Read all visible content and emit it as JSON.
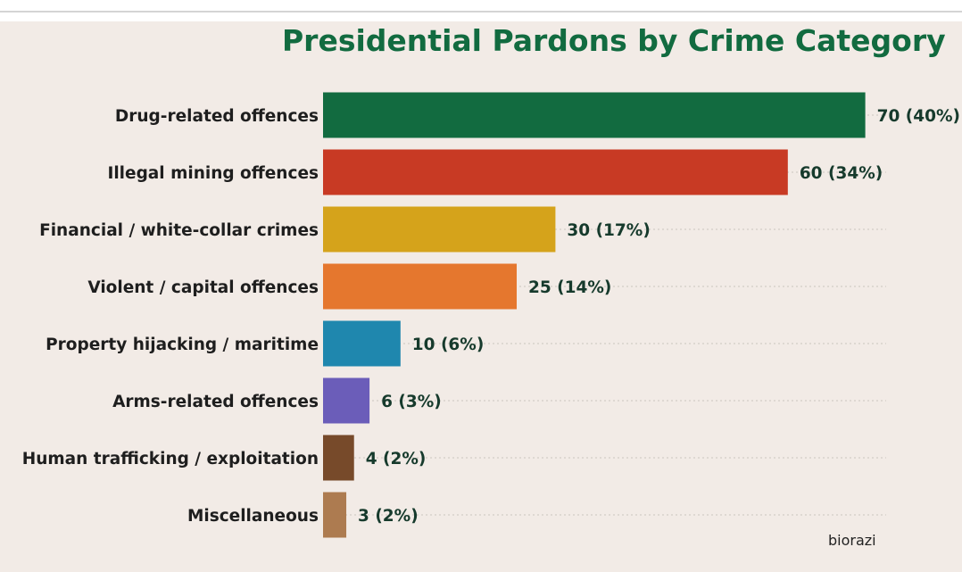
{
  "chart_data": {
    "type": "bar",
    "orientation": "horizontal",
    "title": "Presidential Pardons by Crime Category",
    "categories": [
      "Drug-related offences",
      "Illegal mining offences",
      "Financial / white-collar crimes",
      "Violent / capital offences",
      "Property hijacking / maritime",
      "Arms-related offences",
      "Human trafficking / exploitation",
      "Miscellaneous"
    ],
    "values": [
      70,
      60,
      30,
      25,
      10,
      6,
      4,
      3
    ],
    "value_labels": [
      "70 (40%)",
      "60 (34%)",
      "30 (17%)",
      "25 (14%)",
      "10 (6%)",
      "6 (3%)",
      "4 (2%)",
      "3 (2%)"
    ],
    "colors": [
      "#126b40",
      "#c83a24",
      "#d5a31b",
      "#e5772e",
      "#1f87ae",
      "#6b5db9",
      "#774a2a",
      "#ad7b50"
    ],
    "xlim": [
      0,
      73.5
    ],
    "grid": "horizontal dotted lines per bar",
    "legend": "none",
    "xlabel": "",
    "ylabel": ""
  },
  "watermark": "biorazi"
}
